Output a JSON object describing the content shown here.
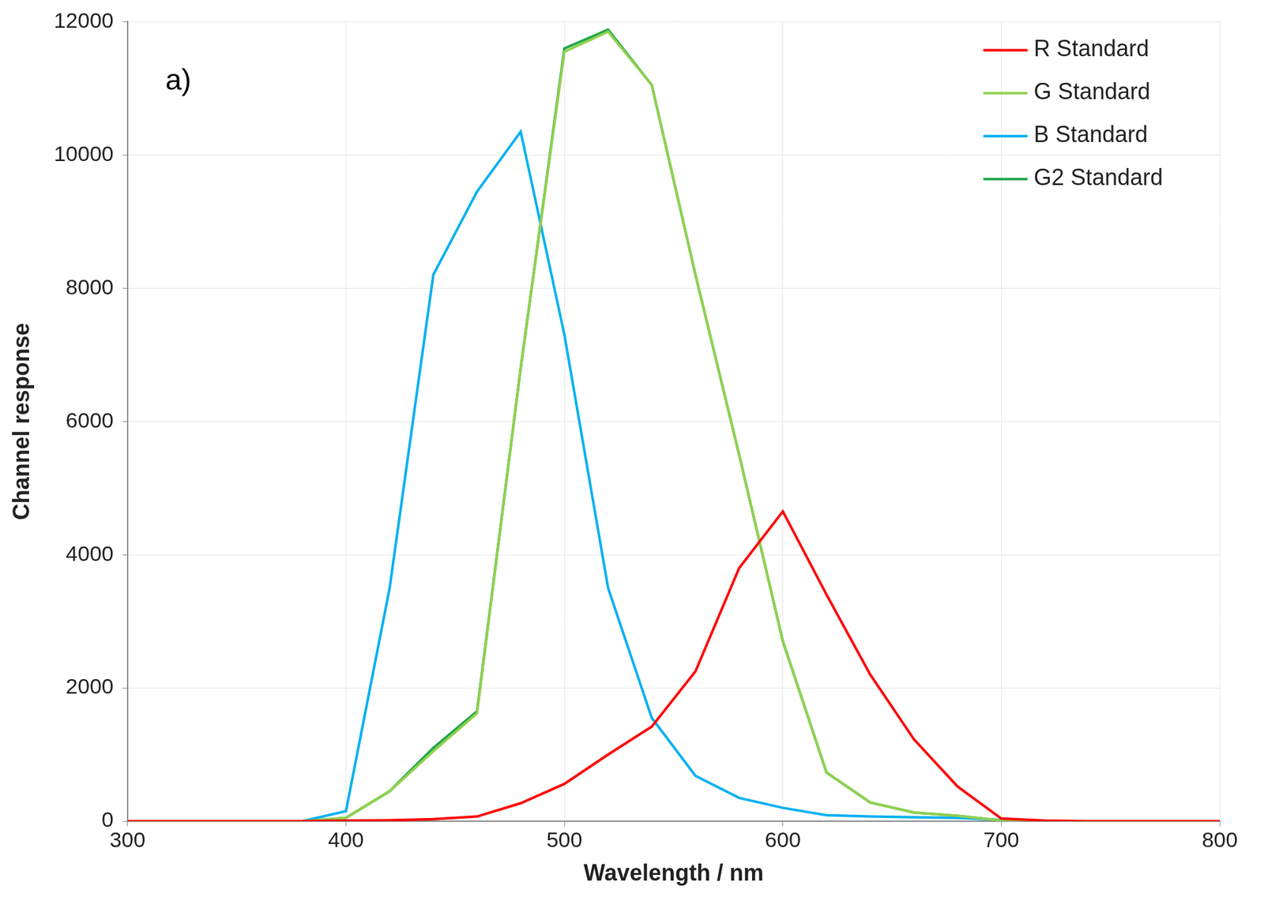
{
  "chart_data": {
    "type": "line",
    "x_label": "Wavelength / nm",
    "y_label": "Channel response",
    "annotations": [
      "a)"
    ],
    "x": [
      300,
      320,
      340,
      360,
      380,
      400,
      420,
      440,
      460,
      480,
      500,
      520,
      540,
      560,
      580,
      600,
      620,
      640,
      660,
      680,
      700,
      720,
      740,
      760,
      780,
      800
    ],
    "series": [
      {
        "name": "R Standard",
        "color": "#ff0000",
        "values": [
          0,
          0,
          0,
          0,
          0,
          10,
          15,
          30,
          70,
          270,
          560,
          1000,
          1420,
          2250,
          3800,
          4650,
          3400,
          2200,
          1230,
          520,
          40,
          10,
          0,
          0,
          0,
          0
        ]
      },
      {
        "name": "G Standard",
        "color": "#92d050",
        "values": [
          0,
          0,
          0,
          0,
          0,
          50,
          450,
          1050,
          1620,
          6800,
          11550,
          11850,
          11050,
          8200,
          5500,
          2700,
          730,
          280,
          130,
          80,
          10,
          0,
          0,
          0,
          0,
          0
        ]
      },
      {
        "name": "B Standard",
        "color": "#00b0f0",
        "values": [
          0,
          0,
          0,
          0,
          0,
          150,
          3500,
          8200,
          9450,
          10350,
          7300,
          3500,
          1550,
          680,
          350,
          200,
          90,
          70,
          60,
          50,
          20,
          0,
          0,
          0,
          0,
          0
        ]
      },
      {
        "name": "G2 Standard",
        "color": "#1fa84a",
        "values": [
          0,
          0,
          0,
          0,
          0,
          50,
          450,
          1100,
          1650,
          6800,
          11600,
          11880,
          11050,
          8200,
          5500,
          2700,
          730,
          280,
          130,
          80,
          10,
          0,
          0,
          0,
          0,
          0
        ]
      }
    ],
    "xlim": [
      300,
      800
    ],
    "xticks": [
      300,
      400,
      500,
      600,
      700,
      800
    ],
    "ylim": [
      0,
      12000
    ],
    "yticks": [
      0,
      2000,
      4000,
      6000,
      8000,
      10000,
      12000
    ],
    "grid": true,
    "legend": "upper right"
  }
}
